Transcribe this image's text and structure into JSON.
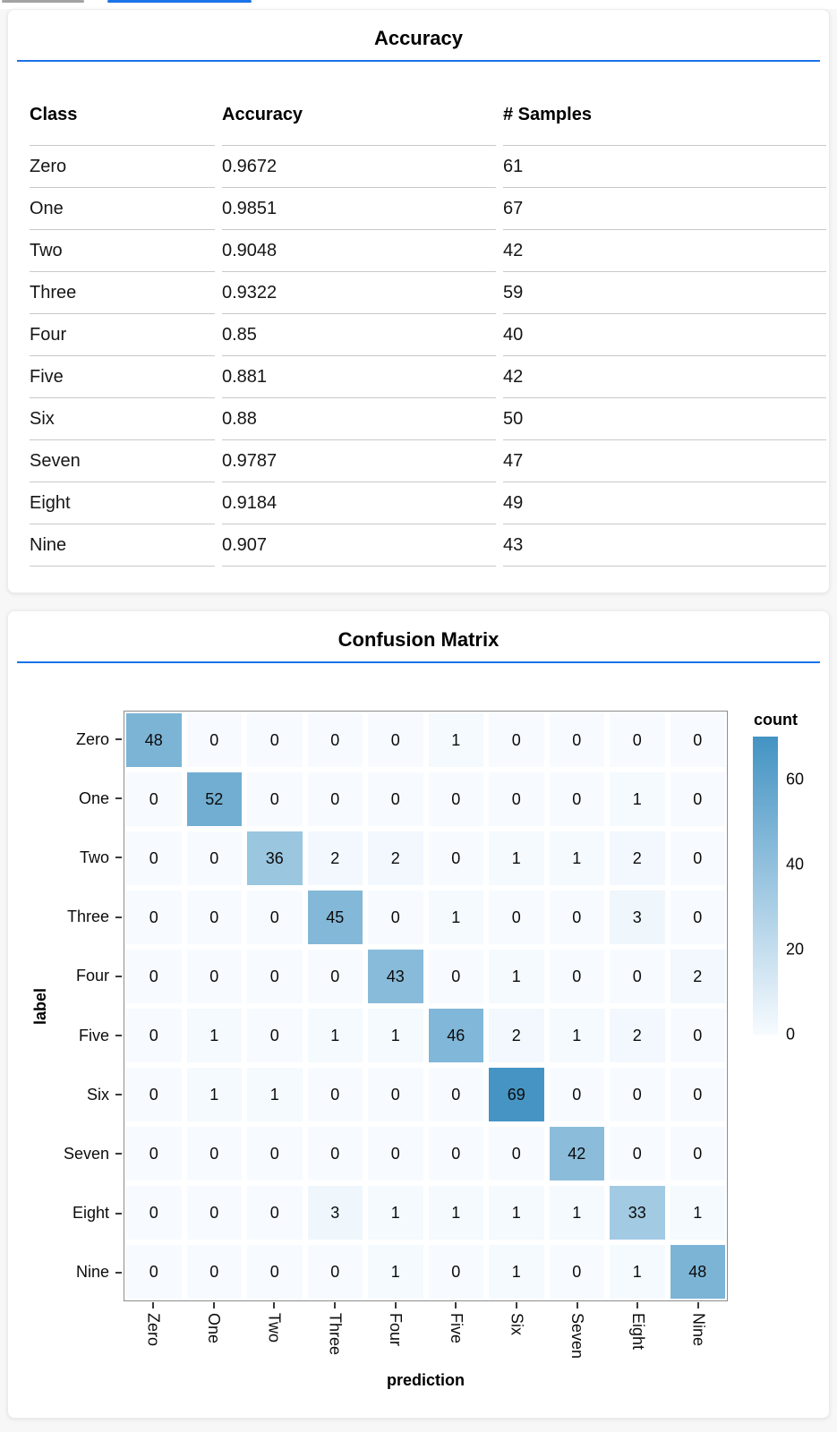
{
  "colors": {
    "accent_blue": "#1a73e8",
    "tab_gray": "#a3a3a3",
    "heatmap_min": "#f7fbff",
    "heatmap_max": "#4393c3"
  },
  "chart_data": [
    {
      "type": "table",
      "title": "Accuracy",
      "columns": [
        "Class",
        "Accuracy",
        "# Samples"
      ],
      "rows": [
        [
          "Zero",
          "0.9672",
          "61"
        ],
        [
          "One",
          "0.9851",
          "67"
        ],
        [
          "Two",
          "0.9048",
          "42"
        ],
        [
          "Three",
          "0.9322",
          "59"
        ],
        [
          "Four",
          "0.85",
          "40"
        ],
        [
          "Five",
          "0.881",
          "42"
        ],
        [
          "Six",
          "0.88",
          "50"
        ],
        [
          "Seven",
          "0.9787",
          "47"
        ],
        [
          "Eight",
          "0.9184",
          "49"
        ],
        [
          "Nine",
          "0.907",
          "43"
        ]
      ]
    },
    {
      "type": "heatmap",
      "title": "Confusion Matrix",
      "xlabel": "prediction",
      "ylabel": "label",
      "x_categories": [
        "Zero",
        "One",
        "Two",
        "Three",
        "Four",
        "Five",
        "Six",
        "Seven",
        "Eight",
        "Nine"
      ],
      "y_categories": [
        "Zero",
        "One",
        "Two",
        "Three",
        "Four",
        "Five",
        "Six",
        "Seven",
        "Eight",
        "Nine"
      ],
      "values": [
        [
          48,
          0,
          0,
          0,
          0,
          1,
          0,
          0,
          0,
          0
        ],
        [
          0,
          52,
          0,
          0,
          0,
          0,
          0,
          0,
          1,
          0
        ],
        [
          0,
          0,
          36,
          2,
          2,
          0,
          1,
          1,
          2,
          0
        ],
        [
          0,
          0,
          0,
          45,
          0,
          1,
          0,
          0,
          3,
          0
        ],
        [
          0,
          0,
          0,
          0,
          43,
          0,
          1,
          0,
          0,
          2
        ],
        [
          0,
          1,
          0,
          1,
          1,
          46,
          2,
          1,
          2,
          0
        ],
        [
          0,
          1,
          1,
          0,
          0,
          0,
          69,
          0,
          0,
          0
        ],
        [
          0,
          0,
          0,
          0,
          0,
          0,
          0,
          42,
          0,
          0
        ],
        [
          0,
          0,
          0,
          3,
          1,
          1,
          1,
          1,
          33,
          1
        ],
        [
          0,
          0,
          0,
          0,
          1,
          0,
          1,
          0,
          1,
          48
        ]
      ],
      "legend": {
        "title": "count",
        "ticks": [
          0,
          20,
          40,
          60
        ],
        "domain": [
          0,
          70
        ]
      },
      "grid": false,
      "legend_position": "right",
      "color_scheme": "blues"
    }
  ]
}
